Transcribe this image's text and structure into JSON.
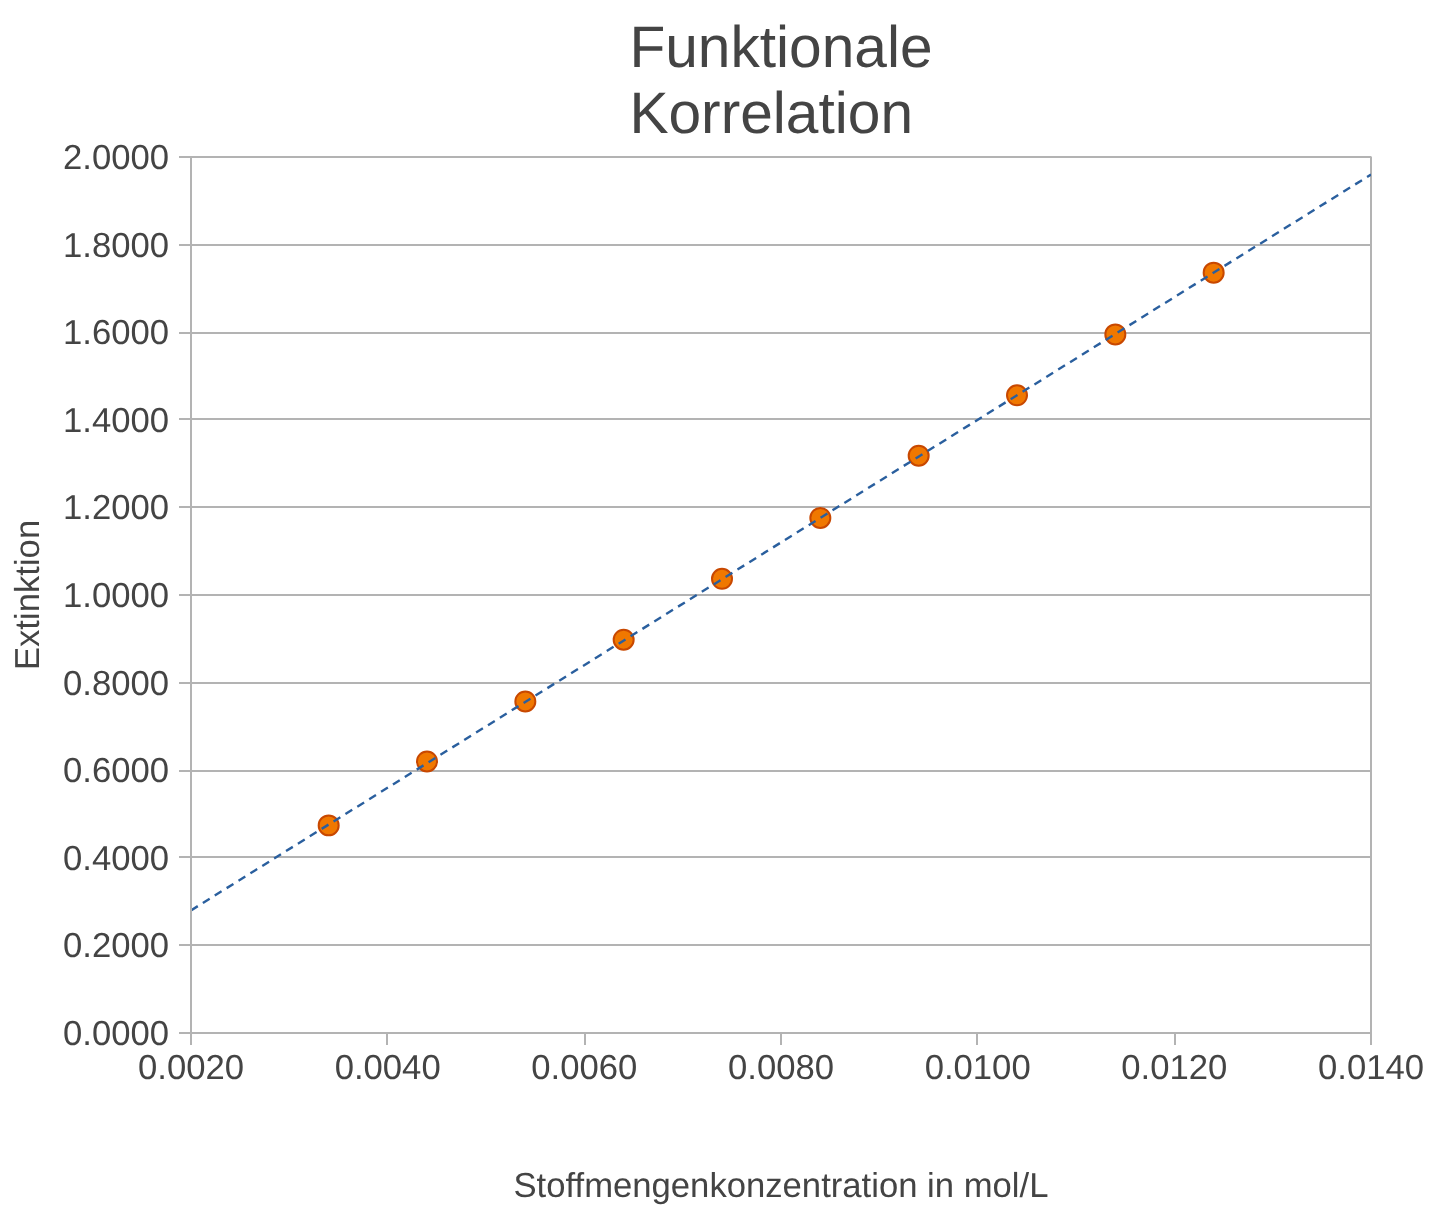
{
  "chart_data": {
    "type": "scatter",
    "title": "Funktionale\nKorrelation",
    "xlabel": "Stoffmengenkonzentration in mol/L",
    "ylabel": "Extinktion",
    "x": [
      0.0034,
      0.0044,
      0.0054,
      0.0064,
      0.0074,
      0.0084,
      0.0094,
      0.0104,
      0.0114,
      0.0124
    ],
    "series": [
      {
        "color": "#f07800",
        "marker": "circle",
        "values": [
          0.474,
          0.62,
          0.757,
          0.898,
          1.037,
          1.176,
          1.318,
          1.456,
          1.595,
          1.736
        ]
      },
      {
        "type": "line",
        "color": "#2a5f9e",
        "line_style": "dashed",
        "marker": "none",
        "x": [
          0.002,
          0.014
        ],
        "values": [
          0.28,
          1.96
        ]
      }
    ],
    "xlim": [
      0.002,
      0.014
    ],
    "ylim": [
      0,
      2
    ],
    "xticks": [
      {
        "value": 0.002,
        "label": "0.0020"
      },
      {
        "value": 0.004,
        "label": "0.0040"
      },
      {
        "value": 0.006,
        "label": "0.0060"
      },
      {
        "value": 0.008,
        "label": "0.0080"
      },
      {
        "value": 0.01,
        "label": "0.0100"
      },
      {
        "value": 0.012,
        "label": "0.0120"
      },
      {
        "value": 0.014,
        "label": "0.0140"
      }
    ],
    "yticks": [
      {
        "value": 0,
        "label": "0.0000"
      },
      {
        "value": 0.2,
        "label": "0.2000"
      },
      {
        "value": 0.4,
        "label": "0.4000"
      },
      {
        "value": 0.6,
        "label": "0.6000"
      },
      {
        "value": 0.8,
        "label": "0.8000"
      },
      {
        "value": 1,
        "label": "1.0000"
      },
      {
        "value": 1.2,
        "label": "1.2000"
      },
      {
        "value": 1.4,
        "label": "1.4000"
      },
      {
        "value": 1.6,
        "label": "1.6000"
      },
      {
        "value": 1.8,
        "label": "1.8000"
      },
      {
        "value": 2,
        "label": "2.0000"
      }
    ],
    "grid": "y"
  }
}
